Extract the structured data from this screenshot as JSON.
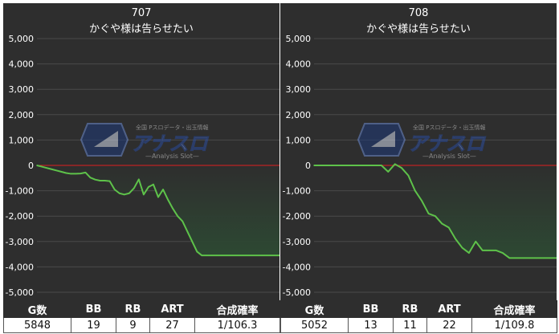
{
  "charts": [
    {
      "machine_no": "707",
      "machine_name": "かぐや様は告らせたい",
      "stats_headers": [
        "G数",
        "BB",
        "RB",
        "ART",
        "合成確率"
      ],
      "stats_values": [
        "5848",
        "19",
        "9",
        "27",
        "1/106.3"
      ]
    },
    {
      "machine_no": "708",
      "machine_name": "かぐや様は告らせたい",
      "stats_headers": [
        "G数",
        "BB",
        "RB",
        "ART",
        "合成確率"
      ],
      "stats_values": [
        "5052",
        "13",
        "11",
        "22",
        "1/109.8"
      ]
    }
  ],
  "logo": {
    "text": "アナスロ",
    "subtext": "—Analysis Slot—",
    "tagline": "全国 Pスロデータ・出玉情報"
  },
  "colors": {
    "line": "#5ec24a",
    "zero_line": "#e02020",
    "fill": "#2d4a33",
    "grid": "#4a4a4a",
    "panel": "#2e2e2e"
  },
  "chart_data": [
    {
      "type": "area",
      "title": "707",
      "subtitle": "かぐや様は告らせたい",
      "ylim": [
        -5000,
        5000
      ],
      "yticks": [
        5000,
        4000,
        3000,
        2000,
        1000,
        0,
        -1000,
        -2000,
        -3000,
        -4000,
        -5000
      ],
      "ytick_labels": [
        "5,000",
        "4,000",
        "3,000",
        "2,000",
        "1,000",
        "0",
        "-1,000",
        "-2,000",
        "-3,000",
        "-4,000",
        "-5,000"
      ],
      "grid": true,
      "x": [
        0,
        1,
        2,
        3,
        4,
        5,
        6,
        7,
        8,
        9,
        10,
        11,
        12,
        13,
        14,
        15,
        16,
        17,
        18,
        19,
        20,
        21,
        22,
        23,
        24,
        25,
        26,
        27,
        28,
        29,
        30,
        31,
        32,
        33,
        34,
        35,
        36,
        37,
        38,
        39,
        40,
        41,
        42,
        43,
        44,
        45,
        46,
        47,
        48,
        49,
        50
      ],
      "values": [
        0,
        -50,
        -100,
        -150,
        -200,
        -250,
        -300,
        -330,
        -330,
        -320,
        -280,
        -480,
        -560,
        -600,
        -600,
        -620,
        -950,
        -1100,
        -1150,
        -1100,
        -900,
        -550,
        -1150,
        -850,
        -750,
        -1250,
        -950,
        -1350,
        -1700,
        -2000,
        -2200,
        -2600,
        -3000,
        -3400,
        -3550,
        -3550,
        -3550,
        -3550,
        -3550,
        -3550,
        -3550,
        -3550,
        -3550,
        -3550,
        -3550,
        -3550,
        -3550,
        -3550,
        -3550,
        -3550,
        -3550
      ],
      "x_end": 36
    },
    {
      "type": "area",
      "title": "708",
      "subtitle": "かぐや様は告らせたい",
      "ylim": [
        -5000,
        5000
      ],
      "yticks": [
        5000,
        4000,
        3000,
        2000,
        1000,
        0,
        -1000,
        -2000,
        -3000,
        -4000,
        -5000
      ],
      "ytick_labels": [
        "5,000",
        "4,000",
        "3,000",
        "2,000",
        "1,000",
        "0",
        "-1,000",
        "-2,000",
        "-3,000",
        "-4,000",
        "-5,000"
      ],
      "grid": true,
      "x": [
        0,
        1,
        2,
        3,
        4,
        5,
        6,
        7,
        8,
        9,
        10,
        11,
        12,
        13,
        14,
        15,
        16,
        17,
        18,
        19,
        20,
        21,
        22,
        23,
        24,
        25,
        26,
        27,
        28,
        29,
        30,
        31,
        32,
        33,
        34,
        35,
        36
      ],
      "values": [
        0,
        0,
        0,
        0,
        0,
        0,
        0,
        0,
        0,
        0,
        0,
        -250,
        50,
        -100,
        -400,
        -1000,
        -1400,
        -1900,
        -2000,
        -2300,
        -2450,
        -2900,
        -3250,
        -3450,
        -3000,
        -3350,
        -3350,
        -3350,
        -3450,
        -3650,
        -3650,
        -3650,
        -3650,
        -3650,
        -3650,
        -3650,
        -3650
      ],
      "x_end": 29
    }
  ]
}
